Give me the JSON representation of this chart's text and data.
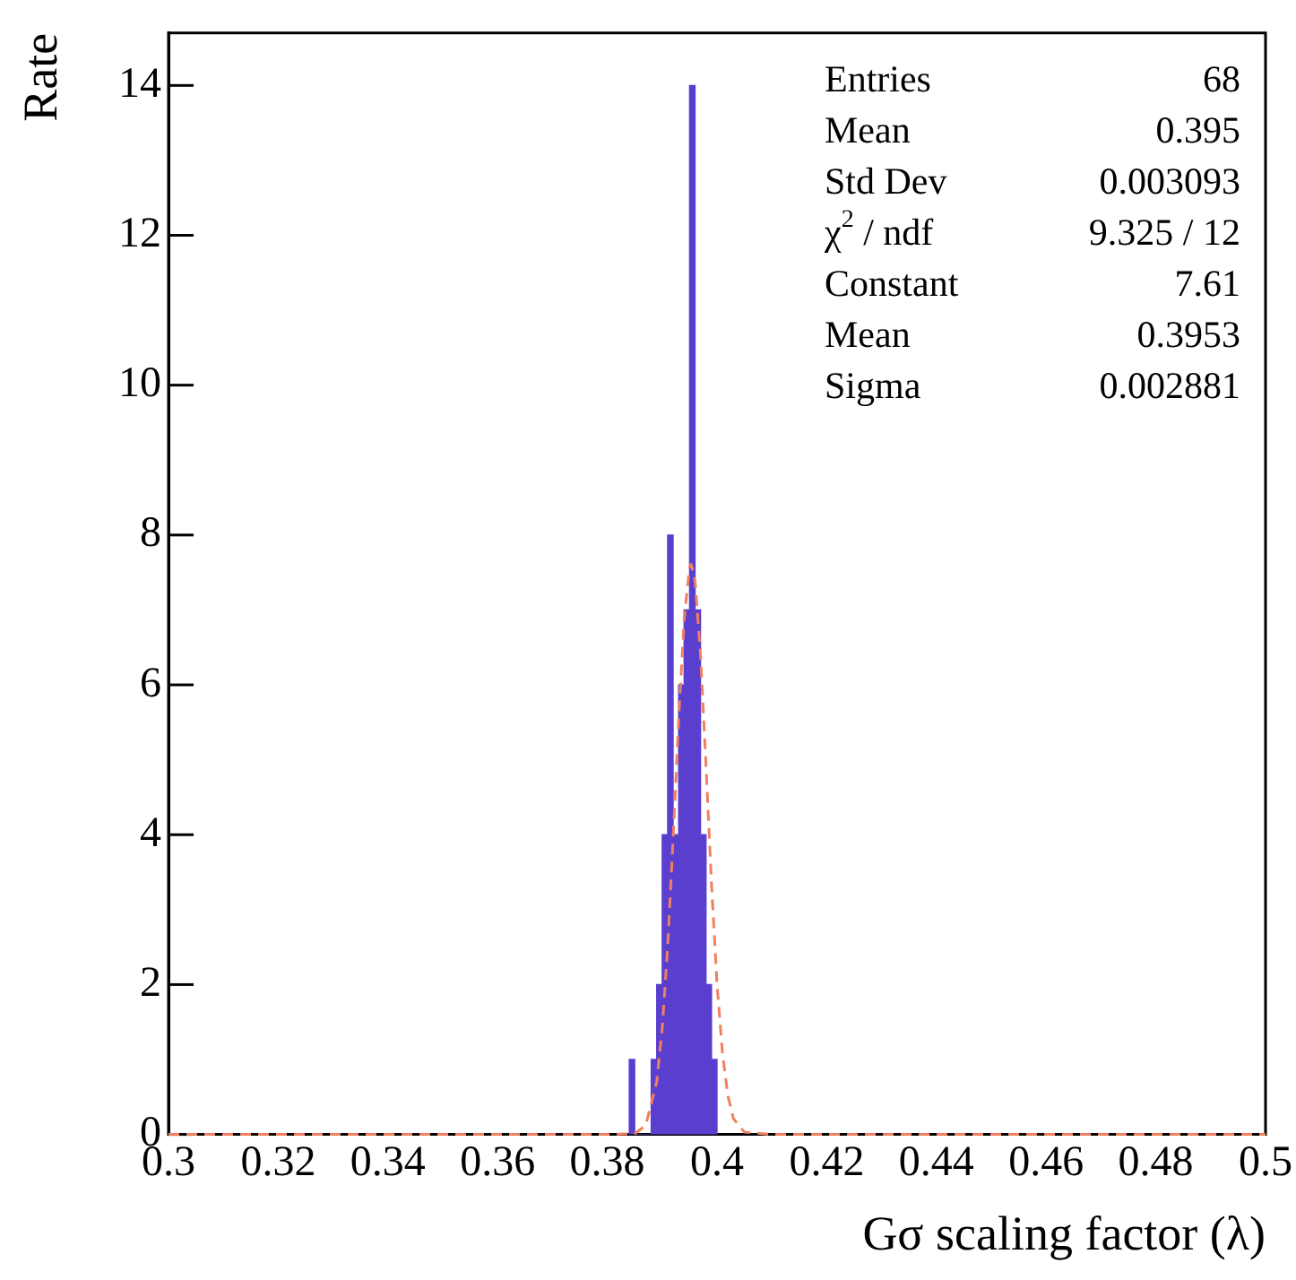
{
  "chart_data": {
    "type": "histogram",
    "xlabel": "Gσ scaling factor (λ)",
    "ylabel": "Rate",
    "bins": [
      0.384,
      0.385,
      0.386,
      0.387,
      0.388,
      0.389,
      0.39,
      0.391,
      0.392,
      0.393,
      0.394,
      0.395,
      0.396,
      0.397,
      0.398,
      0.399,
      0.4
    ],
    "values": [
      1,
      0,
      0,
      0,
      1,
      2,
      4,
      8,
      4,
      6,
      7,
      14,
      7,
      4,
      2,
      1
    ],
    "color": "#5a3fcf",
    "series": [
      {
        "type": "line",
        "color": "#f08060",
        "line_style": "dashed",
        "marker": "none",
        "x": [
          0.3,
          0.38,
          0.385,
          0.387,
          0.389,
          0.39,
          0.391,
          0.392,
          0.393,
          0.394,
          0.395,
          0.3953,
          0.396,
          0.397,
          0.398,
          0.399,
          0.4,
          0.401,
          0.402,
          0.403,
          0.405,
          0.41,
          0.5
        ],
        "values": [
          0,
          0,
          0.01,
          0.12,
          0.7,
          1.4,
          2.5,
          3.95,
          5.53,
          6.87,
          7.57,
          7.61,
          7.39,
          6.39,
          4.91,
          3.34,
          2.01,
          1.08,
          0.51,
          0.21,
          0.03,
          0,
          0
        ]
      }
    ],
    "xlim": [
      0.3,
      0.5
    ],
    "xticks": [
      0.3,
      0.32,
      0.34,
      0.36,
      0.38,
      0.4,
      0.42,
      0.44,
      0.46,
      0.48,
      0.5
    ],
    "ylim": [
      0,
      14.7
    ],
    "yticks": [
      0,
      2,
      4,
      6,
      8,
      10,
      12,
      14
    ],
    "grid": false,
    "legend": false,
    "annotations": [
      "Entries",
      "68",
      "Mean",
      "0.395",
      "Std Dev",
      "0.003093",
      "χ$^{2}$ / ndf",
      "9.325 / 12",
      "Constant",
      "7.61",
      "Mean",
      "0.3953",
      "Sigma",
      "0.002881"
    ]
  }
}
